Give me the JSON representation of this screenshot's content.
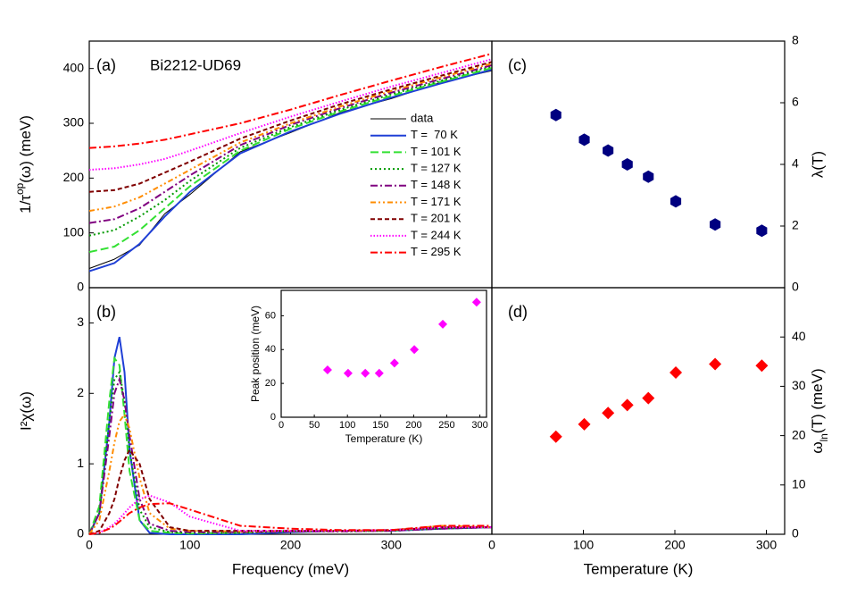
{
  "chart_data": [
    {
      "type": "line",
      "panel": "(a)",
      "title": "Bi2212-UD69",
      "ylabel": [
        "1/τ",
        "op",
        "(ω) (meV)"
      ],
      "xlim": [
        0,
        400
      ],
      "ylim": [
        0,
        450
      ],
      "yticks": [
        0,
        100,
        200,
        300,
        400
      ],
      "x": [
        0,
        25,
        50,
        75,
        100,
        150,
        200,
        250,
        300,
        350,
        400
      ],
      "series": [
        {
          "name": "data",
          "color": "#000000",
          "values": [
            35,
            52,
            78,
            135,
            170,
            248,
            283,
            320,
            345,
            375,
            396
          ]
        },
        {
          "name": "T =  70 K",
          "color": "#1f3fd6",
          "values": [
            30,
            45,
            80,
            130,
            175,
            245,
            285,
            318,
            347,
            373,
            398
          ]
        },
        {
          "name": "T = 101 K",
          "color": "#33e033",
          "values": [
            65,
            75,
            105,
            145,
            185,
            250,
            290,
            322,
            350,
            376,
            401
          ]
        },
        {
          "name": "T = 127 K",
          "color": "#009900",
          "values": [
            95,
            105,
            130,
            160,
            195,
            255,
            293,
            325,
            353,
            378,
            404
          ]
        },
        {
          "name": "T = 148 K",
          "color": "#800080",
          "values": [
            118,
            125,
            145,
            175,
            205,
            260,
            297,
            328,
            356,
            381,
            406
          ]
        },
        {
          "name": "T = 171 K",
          "color": "#ff8c00",
          "values": [
            140,
            148,
            165,
            190,
            215,
            265,
            300,
            331,
            359,
            384,
            409
          ]
        },
        {
          "name": "T = 201 K",
          "color": "#800000",
          "values": [
            175,
            178,
            190,
            210,
            230,
            272,
            305,
            335,
            362,
            387,
            412
          ]
        },
        {
          "name": "T = 244 K",
          "color": "#ff00ff",
          "values": [
            215,
            218,
            225,
            235,
            250,
            282,
            312,
            340,
            367,
            392,
            417
          ]
        },
        {
          "name": "T = 295 K",
          "color": "#ff0000",
          "values": [
            255,
            258,
            263,
            270,
            280,
            300,
            325,
            352,
            378,
            403,
            427
          ]
        }
      ]
    },
    {
      "type": "line",
      "panel": "(b)",
      "ylabel": "I²χ(ω)",
      "xlabel": "Frequency (meV)",
      "xlim": [
        0,
        400
      ],
      "xticks": [
        0,
        100,
        200,
        300
      ],
      "ylim": [
        0,
        3.5
      ],
      "yticks": [
        0,
        1,
        2,
        3
      ],
      "x": [
        0,
        10,
        20,
        25,
        30,
        35,
        40,
        50,
        60,
        80,
        100,
        150,
        200,
        250,
        300,
        350,
        400
      ],
      "series": [
        {
          "name": "T =  70 K",
          "color": "#1f3fd6",
          "values": [
            0,
            0.3,
            1.6,
            2.5,
            2.8,
            2.3,
            1.2,
            0.2,
            0.02,
            0,
            0,
            0,
            0.03,
            0.05,
            0.05,
            0.08,
            0.1
          ]
        },
        {
          "name": "T = 101 K",
          "color": "#33e033",
          "values": [
            0,
            0.4,
            1.9,
            2.5,
            2.4,
            1.7,
            0.9,
            0.2,
            0.05,
            0.02,
            0.01,
            0.02,
            0.05,
            0.05,
            0.05,
            0.1,
            0.1
          ]
        },
        {
          "name": "T = 127 K",
          "color": "#009900",
          "values": [
            0,
            0.3,
            1.6,
            2.2,
            2.3,
            1.9,
            1.2,
            0.35,
            0.1,
            0.03,
            0.02,
            0.02,
            0.04,
            0.04,
            0.05,
            0.08,
            0.1
          ]
        },
        {
          "name": "T = 148 K",
          "color": "#800080",
          "values": [
            0,
            0.3,
            1.4,
            2.0,
            2.2,
            1.9,
            1.4,
            0.5,
            0.15,
            0.05,
            0.03,
            0.03,
            0.04,
            0.04,
            0.05,
            0.08,
            0.1
          ]
        },
        {
          "name": "T = 171 K",
          "color": "#ff8c00",
          "values": [
            0,
            0.2,
            0.9,
            1.3,
            1.6,
            1.7,
            1.5,
            0.8,
            0.3,
            0.08,
            0.05,
            0.04,
            0.05,
            0.05,
            0.06,
            0.12,
            0.1
          ]
        },
        {
          "name": "T = 201 K",
          "color": "#800000",
          "values": [
            0,
            0.05,
            0.3,
            0.5,
            0.8,
            1.05,
            1.2,
            1.0,
            0.5,
            0.1,
            0.05,
            0.05,
            0.05,
            0.05,
            0.06,
            0.1,
            0.1
          ]
        },
        {
          "name": "T = 244 K",
          "color": "#ff00ff",
          "values": [
            0,
            0.02,
            0.1,
            0.15,
            0.22,
            0.3,
            0.38,
            0.5,
            0.55,
            0.45,
            0.25,
            0.05,
            0.05,
            0.05,
            0.06,
            0.1,
            0.1
          ]
        },
        {
          "name": "T = 295 K",
          "color": "#ff0000",
          "values": [
            0,
            0.02,
            0.08,
            0.12,
            0.18,
            0.24,
            0.3,
            0.38,
            0.43,
            0.44,
            0.35,
            0.12,
            0.08,
            0.06,
            0.06,
            0.12,
            0.12
          ]
        }
      ]
    },
    {
      "type": "scatter",
      "ylabel": "Peak position (meV)",
      "xlabel": "Temperature (K)",
      "marker": "diamond",
      "color": "#ff00ff",
      "xlim": [
        0,
        310
      ],
      "xticks": [
        0,
        50,
        100,
        150,
        200,
        250,
        300
      ],
      "ylim": [
        0,
        75
      ],
      "yticks": [
        0,
        20,
        40,
        60
      ],
      "x": [
        70,
        101,
        127,
        148,
        171,
        201,
        244,
        295
      ],
      "values": [
        28,
        26,
        26,
        26,
        32,
        40,
        55,
        68
      ]
    },
    {
      "type": "scatter",
      "panel": "(c)",
      "ylabel": "λ(T)",
      "marker": "hexagon",
      "color": "#000080",
      "xlim": [
        0,
        320
      ],
      "ylim": [
        0,
        8
      ],
      "yticks": [
        0,
        2,
        4,
        6,
        8
      ],
      "x": [
        70,
        101,
        127,
        148,
        171,
        201,
        244,
        295
      ],
      "values": [
        5.6,
        4.8,
        4.45,
        4.0,
        3.6,
        2.8,
        2.05,
        1.85
      ]
    },
    {
      "type": "scatter",
      "panel": "(d)",
      "ylabel": [
        "ω",
        "ln",
        "(T) (meV)"
      ],
      "xlabel": "Temperature (K)",
      "marker": "diamond",
      "color": "#ff0000",
      "xlim": [
        0,
        320
      ],
      "xticks": [
        0,
        100,
        200,
        300
      ],
      "ylim": [
        0,
        50
      ],
      "yticks": [
        0,
        10,
        20,
        30,
        40
      ],
      "x": [
        70,
        101,
        127,
        148,
        171,
        201,
        244,
        295
      ],
      "values": [
        19.8,
        22.3,
        24.6,
        26.2,
        27.6,
        32.8,
        34.5,
        34.2
      ]
    }
  ]
}
